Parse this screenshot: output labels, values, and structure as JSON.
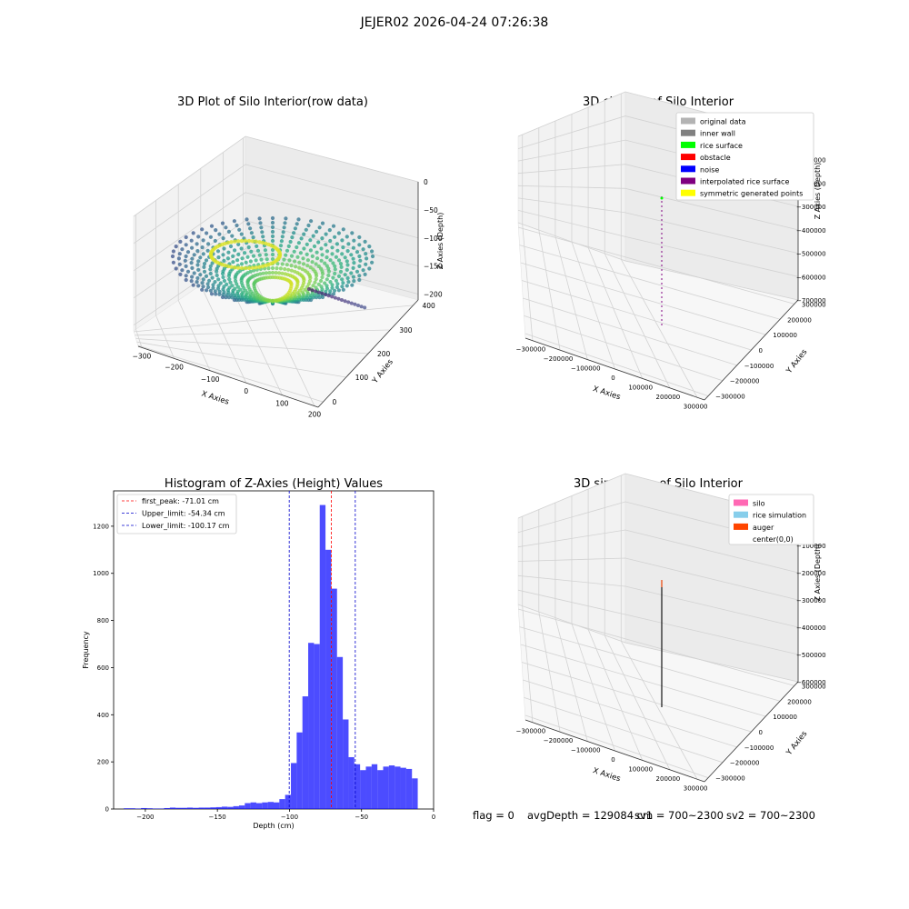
{
  "figure": {
    "title": "JEJER02 2026-04-24 07:26:38"
  },
  "panels": {
    "raw": {
      "title": "3D Plot of Silo Interior(row data)",
      "xlabel": "X Axies",
      "ylabel": "Y Axies",
      "zlabel": "Z Axies (Depth)",
      "xticks": [
        "−300",
        "−200",
        "−100",
        "0",
        "100",
        "200"
      ],
      "yticks": [
        "0",
        "100",
        "200",
        "300",
        "400"
      ],
      "zticks": [
        "0",
        "−50",
        "−100",
        "−150",
        "−200"
      ]
    },
    "classify": {
      "title": "3D classify of Silo Interior",
      "xlabel": "X Axies",
      "ylabel": "Y Axies",
      "zlabel": "Z Axies (Depth)",
      "xticks": [
        "−300000",
        "−200000",
        "−100000",
        "0",
        "100000",
        "200000",
        "300000"
      ],
      "yticks": [
        "−300000",
        "−200000",
        "−100000",
        "0",
        "100000",
        "200000",
        "300000"
      ],
      "zticks": [
        "0",
        "−100000",
        "−200000",
        "−300000",
        "−400000",
        "−500000",
        "−600000",
        "−700000"
      ],
      "legend": [
        {
          "label": "original data",
          "color": "#b3b3b3"
        },
        {
          "label": "inner wall",
          "color": "#808080"
        },
        {
          "label": "rice surface",
          "color": "#00ff00"
        },
        {
          "label": "obstacle",
          "color": "#ff0000"
        },
        {
          "label": "noise",
          "color": "#0000ff"
        },
        {
          "label": "interpolated rice surface",
          "color": "#800080"
        },
        {
          "label": "symmetric generated points",
          "color": "#ffff00"
        }
      ]
    },
    "simulation": {
      "title": "3D simulation of Silo Interior",
      "xlabel": "X Axies",
      "ylabel": "Y Axies",
      "zlabel": "Z Axies (Depth)",
      "xticks": [
        "−300000",
        "−200000",
        "−100000",
        "0",
        "100000",
        "200000",
        "300000"
      ],
      "yticks": [
        "−300000",
        "−200000",
        "−100000",
        "0",
        "100000",
        "200000",
        "300000"
      ],
      "zticks": [
        "0",
        "−100000",
        "−200000",
        "−300000",
        "−400000",
        "−500000",
        "−600000"
      ],
      "legend": [
        {
          "label": "silo",
          "color": "#ff69b4"
        },
        {
          "label": "rice simulation",
          "color": "#87ceeb"
        },
        {
          "label": "auger",
          "color": "#ff4500"
        },
        {
          "label": "center(0,0)",
          "color": "#ffffff"
        }
      ]
    }
  },
  "footer": {
    "flag": "flag = 0",
    "avg_depth": "avgDepth = 129084 cm",
    "sv1": "sv1 = 700~2300",
    "sv2": "sv2 = 700~2300"
  },
  "chart_data": [
    {
      "type": "scatter",
      "title": "3D Plot of Silo Interior(row data)",
      "xlabel": "X Axies",
      "ylabel": "Y Axies",
      "zlabel": "Z Axies (Depth)",
      "xlim": [
        -300,
        200
      ],
      "ylim": [
        0,
        400
      ],
      "zlim": [
        -220,
        0
      ],
      "colormap": "viridis",
      "grid": true
    },
    {
      "type": "scatter",
      "title": "3D classify of Silo Interior",
      "xlabel": "X Axies",
      "ylabel": "Y Axies",
      "zlabel": "Z Axies (Depth)",
      "xlim": [
        -300000,
        300000
      ],
      "ylim": [
        -300000,
        300000
      ],
      "zlim": [
        -700000,
        0
      ],
      "legend_position": "top-right",
      "grid": true
    },
    {
      "type": "bar",
      "title": "Histogram of Z-Axies (Height) Values",
      "xlabel": "Depth (cm)",
      "ylabel": "Frequency",
      "xlim": [
        -222,
        0
      ],
      "ylim": [
        0,
        1350
      ],
      "xticks": [
        -200,
        -150,
        -100,
        -50,
        0
      ],
      "yticks": [
        0,
        200,
        400,
        600,
        800,
        1000,
        1200
      ],
      "bar_color": "#0000ff",
      "bin_width": 4,
      "bins_start": [
        -215,
        -211,
        -207,
        -203,
        -199,
        -195,
        -191,
        -187,
        -183,
        -179,
        -175,
        -171,
        -167,
        -163,
        -159,
        -155,
        -151,
        -147,
        -143,
        -139,
        -135,
        -131,
        -127,
        -123,
        -119,
        -115,
        -111,
        -107,
        -103,
        -99,
        -95,
        -91,
        -87,
        -83,
        -79,
        -75,
        -71,
        -67,
        -63,
        -59,
        -55,
        -51,
        -47,
        -43,
        -39,
        -35,
        -31,
        -27,
        -23,
        -19,
        -15,
        -11
      ],
      "counts": [
        3,
        3,
        2,
        4,
        3,
        2,
        2,
        4,
        6,
        5,
        5,
        6,
        5,
        6,
        6,
        7,
        8,
        10,
        9,
        12,
        15,
        25,
        28,
        25,
        28,
        30,
        28,
        42,
        60,
        195,
        325,
        478,
        705,
        700,
        1290,
        1100,
        935,
        645,
        380,
        220,
        190,
        165,
        180,
        190,
        165,
        180,
        185,
        180,
        175,
        170,
        130,
        0
      ],
      "vlines": [
        {
          "label": "first_peak: -71.01 cm",
          "x": -71.01,
          "color": "#ff0000",
          "style": "dashed"
        },
        {
          "label": "Upper_limit: -54.34 cm",
          "x": -54.34,
          "color": "#0000cc",
          "style": "dashed"
        },
        {
          "label": "Lower_limit: -100.17 cm",
          "x": -100.17,
          "color": "#0000cc",
          "style": "dashed"
        }
      ],
      "legend_position": "top-left",
      "grid": false
    },
    {
      "type": "scatter",
      "title": "3D simulation of Silo Interior",
      "xlabel": "X Axies",
      "ylabel": "Y Axies",
      "zlabel": "Z Axies (Depth)",
      "xlim": [
        -300000,
        300000
      ],
      "ylim": [
        -300000,
        300000
      ],
      "zlim": [
        -650000,
        0
      ],
      "legend_position": "top-right",
      "grid": true
    }
  ]
}
